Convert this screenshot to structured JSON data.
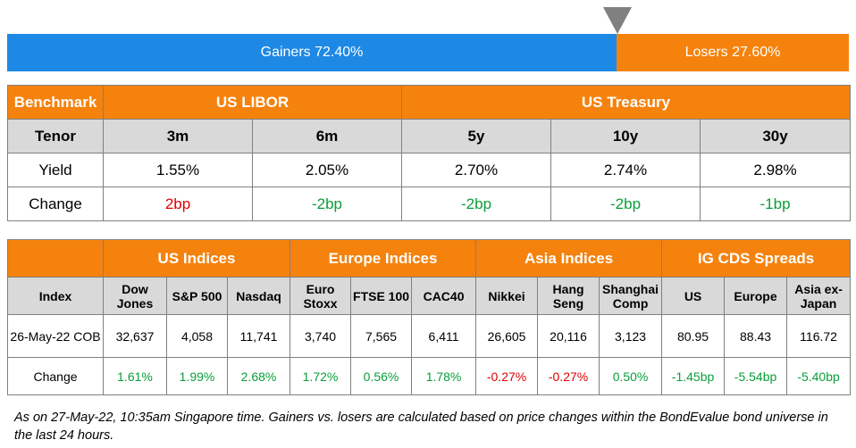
{
  "ratio": {
    "gainers_label": "Gainers 72.40%",
    "losers_label": "Losers 27.60%",
    "gainers_fraction": 0.724,
    "colors": {
      "gainers": "#1e88e5",
      "losers": "#f5820d",
      "marker": "#808080"
    }
  },
  "rates": {
    "benchmark_label": "Benchmark",
    "libor_label": "US LIBOR",
    "treasury_label": "US Treasury",
    "tenor_label": "Tenor",
    "tenors": [
      "3m",
      "6m",
      "5y",
      "10y",
      "30y"
    ],
    "yield_label": "Yield",
    "yields": [
      "1.55%",
      "2.05%",
      "2.70%",
      "2.74%",
      "2.98%"
    ],
    "change_label": "Change",
    "changes": [
      "2bp",
      "-2bp",
      "-2bp",
      "-2bp",
      "-1bp"
    ]
  },
  "indices": {
    "groups": [
      "US Indices",
      "Europe Indices",
      "Asia Indices",
      "IG CDS Spreads"
    ],
    "index_label": "Index",
    "names": [
      "Dow Jones",
      "S&P 500",
      "Nasdaq",
      "Euro Stoxx",
      "FTSE 100",
      "CAC40",
      "Nikkei",
      "Hang Seng",
      "Shanghai Comp",
      "US",
      "Europe",
      "Asia ex-Japan"
    ],
    "date_label": "26-May-22 COB",
    "values": [
      "32,637",
      "4,058",
      "11,741",
      "3,740",
      "7,565",
      "6,411",
      "26,605",
      "20,116",
      "3,123",
      "80.95",
      "88.43",
      "116.72"
    ],
    "change_label": "Change",
    "changes": [
      "1.61%",
      "1.99%",
      "2.68%",
      "1.72%",
      "0.56%",
      "1.78%",
      "-0.27%",
      "-0.27%",
      "0.50%",
      "-1.45bp",
      "-5.54bp",
      "-5.40bp"
    ]
  },
  "footnote": "As on 27-May-22, 10:35am Singapore time. Gainers vs. losers are calculated based on price changes within the BondEvalue bond universe in the last 24 hours."
}
